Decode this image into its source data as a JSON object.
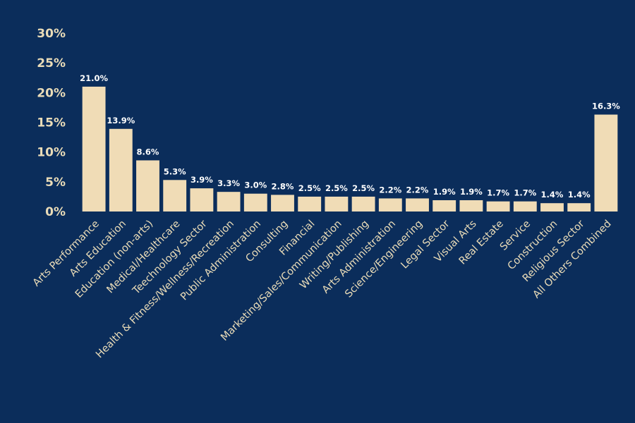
{
  "chart_data": {
    "type": "bar",
    "title": "",
    "xlabel": "",
    "ylabel": "",
    "ylim": [
      0,
      30
    ],
    "yticks": [
      "0%",
      "5%",
      "10%",
      "15%",
      "20%",
      "25%",
      "30%"
    ],
    "grid": false,
    "categories": [
      "Arts Performance",
      "Arts Education",
      "Education (non-arts)",
      "Medical/Healthcare",
      "Teechnology Sector",
      "Health & Fitness/Wellness/Recreation",
      "Public Administration",
      "Consulting",
      "Financial",
      "Marketing/Sales/Communication",
      "Writing/Publishing",
      "Arts Administration",
      "Science/Engineering",
      "Legal Sector",
      "Visual Arts",
      "Real Estate",
      "Service",
      "Construction",
      "Religious Sector",
      "All Others Combined"
    ],
    "values": [
      21.0,
      13.9,
      8.6,
      5.3,
      3.9,
      3.3,
      3.0,
      2.8,
      2.5,
      2.5,
      2.5,
      2.2,
      2.2,
      1.9,
      1.9,
      1.7,
      1.7,
      1.4,
      1.4,
      16.3
    ],
    "data_labels": [
      "21.0%",
      "13.9%",
      "8.6%",
      "5.3%",
      "3.9%",
      "3.3%",
      "3.0%",
      "2.8%",
      "2.5%",
      "2.5%",
      "2.5%",
      "2.2%",
      "2.2%",
      "1.9%",
      "1.9%",
      "1.7%",
      "1.7%",
      "1.4%",
      "1.4%",
      "16.3%"
    ],
    "colors": {
      "background": "#0b2d5b",
      "bar": "#f0dcb6",
      "tick_text": "#eadcb8",
      "data_label": "#ffffff"
    }
  }
}
